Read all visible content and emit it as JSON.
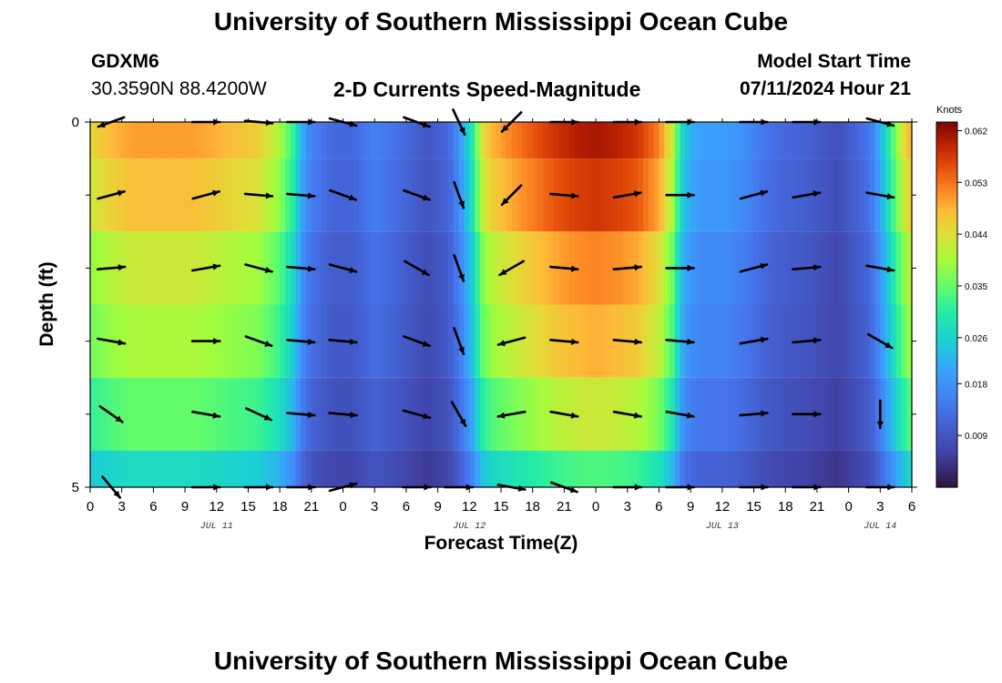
{
  "header": {
    "title": "University of Southern Mississippi Ocean Cube",
    "station": "GDXM6",
    "coords": "30.3590N  88.4200W",
    "subtitle": "2-D Currents Speed-Magnitude",
    "model_start_label": "Model Start Time",
    "model_start_value": "07/11/2024 Hour 21"
  },
  "footer": {
    "title": "University of Southern Mississippi Ocean Cube"
  },
  "chart_data": {
    "type": "heatmap",
    "title": "2-D Currents Speed-Magnitude",
    "xlabel": "Forecast Time(Z)",
    "ylabel": "Depth (ft)",
    "x_start_hour": 0,
    "x_end_hour": 78,
    "x_tick_hours": [
      0,
      3,
      6,
      9,
      12,
      15,
      18,
      21,
      24,
      27,
      30,
      33,
      36,
      39,
      42,
      45,
      48,
      51,
      54,
      57,
      60,
      63,
      66,
      69,
      72,
      75,
      78
    ],
    "x_tick_labels": [
      "0",
      "3",
      "6",
      "9",
      "12",
      "15",
      "18",
      "21",
      "0",
      "3",
      "6",
      "9",
      "12",
      "15",
      "18",
      "21",
      "0",
      "3",
      "6",
      "9",
      "12",
      "15",
      "18",
      "21",
      "0",
      "3",
      "6"
    ],
    "date_labels": [
      {
        "label": "JUL 11",
        "hour": 12
      },
      {
        "label": "JUL 12",
        "hour": 36
      },
      {
        "label": "JUL 13",
        "hour": 60
      },
      {
        "label": "JUL 14",
        "hour": 75
      }
    ],
    "y_range": [
      0,
      5
    ],
    "y_tick_labels": [
      {
        "value": 0,
        "label": "0"
      },
      {
        "value": 5,
        "label": "5"
      }
    ],
    "y_minor_ticks": [
      1,
      2,
      3,
      4
    ],
    "depth_levels": [
      0,
      1,
      2,
      3,
      4,
      5
    ],
    "colorbar": {
      "label": "Knots",
      "min": 0.0,
      "max": 0.0635,
      "ticks": [
        0.009,
        0.018,
        0.026,
        0.035,
        0.044,
        0.053,
        0.062
      ],
      "tick_labels": [
        "0.009",
        "0.018",
        "0.026",
        "0.035",
        "0.044",
        "0.053",
        "0.062"
      ]
    },
    "speed_profile": {
      "hours": [
        0,
        2,
        4,
        10,
        16,
        18,
        19.5,
        20,
        21,
        23,
        25,
        27,
        30,
        32,
        34,
        35,
        36.5,
        37,
        38,
        40,
        42,
        44,
        46,
        48,
        50,
        52,
        54,
        55.5,
        56,
        57,
        58,
        60,
        62,
        64,
        66,
        68,
        70,
        71,
        72,
        74,
        75,
        76,
        77,
        78
      ],
      "depth_scale": [
        1.0,
        0.95,
        0.85,
        0.8,
        0.7,
        0.55
      ],
      "values": [
        0.045,
        0.048,
        0.05,
        0.05,
        0.046,
        0.04,
        0.03,
        0.022,
        0.016,
        0.012,
        0.012,
        0.016,
        0.012,
        0.009,
        0.012,
        0.018,
        0.032,
        0.042,
        0.048,
        0.052,
        0.055,
        0.058,
        0.06,
        0.061,
        0.06,
        0.058,
        0.052,
        0.04,
        0.028,
        0.022,
        0.02,
        0.02,
        0.018,
        0.014,
        0.012,
        0.011,
        0.009,
        0.008,
        0.01,
        0.014,
        0.022,
        0.032,
        0.042,
        0.05
      ]
    },
    "arrow_columns": [
      2,
      11,
      16,
      20,
      24,
      31,
      35,
      40,
      45,
      51,
      56,
      63,
      68,
      75
    ],
    "vector_rows": [
      {
        "depth": 0,
        "angles": [
          160,
          0,
          5,
          0,
          15,
          20,
          65,
          135,
          0,
          0,
          0,
          0,
          0,
          15
        ]
      },
      {
        "depth": 1,
        "angles": [
          -15,
          -15,
          5,
          5,
          20,
          20,
          70,
          135,
          5,
          -10,
          0,
          -15,
          -10,
          10
        ]
      },
      {
        "depth": 2,
        "angles": [
          -5,
          -10,
          15,
          5,
          15,
          30,
          70,
          150,
          5,
          -5,
          0,
          -15,
          -5,
          10
        ]
      },
      {
        "depth": 3,
        "angles": [
          10,
          0,
          20,
          5,
          5,
          20,
          70,
          165,
          5,
          5,
          5,
          -10,
          -5,
          30
        ]
      },
      {
        "depth": 4,
        "angles": [
          35,
          10,
          25,
          5,
          5,
          15,
          60,
          170,
          10,
          10,
          10,
          -5,
          0,
          90
        ]
      },
      {
        "depth": 5,
        "angles": [
          50,
          0,
          0,
          0,
          -15,
          0,
          0,
          10,
          20,
          0,
          0,
          0,
          0,
          0
        ]
      }
    ]
  }
}
